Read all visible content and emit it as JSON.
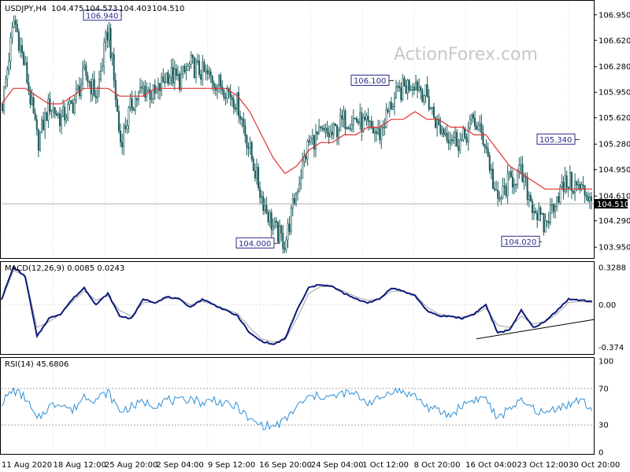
{
  "header": {
    "symbol": "USDJPY,H4",
    "open": "104.475",
    "high": "104.573",
    "low": "104.403",
    "close": "104.510"
  },
  "watermark": "ActionForex.com",
  "colors": {
    "price_bars": "#1f5f5f",
    "moving_average": "#e03030",
    "macd": "#0a1a7a",
    "macd_signal": "#a0a0a0",
    "rsi": "#2e8fd6",
    "trendline": "#000000",
    "grid": "#c0c0c0"
  },
  "chart_data": [
    {
      "type": "line",
      "name": "price",
      "ylim": [
        103.83,
        107.1
      ],
      "y_ticks": [
        "106.950",
        "106.620",
        "106.280",
        "105.950",
        "105.620",
        "105.280",
        "104.950",
        "104.610",
        "104.290",
        "103.950"
      ],
      "current_price_label": "104.510",
      "current_price": 104.51,
      "x_ticks": [
        "11 Aug 2020",
        "18 Aug 12:00",
        "25 Aug 20:00",
        "2 Sep 04:00",
        "9 Sep 12:00",
        "16 Sep 20:00",
        "24 Sep 04:00",
        "1 Oct 12:00",
        "8 Oct 20:00",
        "16 Oct 04:00",
        "23 Oct 12:00",
        "30 Oct 20:00"
      ],
      "annotations": [
        {
          "label": "106.940",
          "value": 106.94
        },
        {
          "label": "104.000",
          "value": 104.0
        },
        {
          "label": "106.100",
          "value": 106.1
        },
        {
          "label": "105.340",
          "value": 105.34
        },
        {
          "label": "104.020",
          "value": 104.02
        }
      ],
      "close_path": [
        105.8,
        106.9,
        106.2,
        105.3,
        105.8,
        105.6,
        105.8,
        106.2,
        105.9,
        106.8,
        105.3,
        105.8,
        106.0,
        105.9,
        106.2,
        106.1,
        106.3,
        106.2,
        106.1,
        106.0,
        105.8,
        105.2,
        104.6,
        104.2,
        104.0,
        104.7,
        105.3,
        105.4,
        105.4,
        105.6,
        105.6,
        105.5,
        105.4,
        105.8,
        106.0,
        106.1,
        105.9,
        105.5,
        105.4,
        105.3,
        105.6,
        105.3,
        104.5,
        104.8,
        104.9,
        104.5,
        104.2,
        104.6,
        104.8,
        104.7,
        104.6
      ],
      "moving_average_path": [
        105.8,
        106.0,
        106.0,
        105.9,
        105.8,
        105.8,
        105.9,
        106.0,
        106.0,
        106.0,
        105.9,
        105.9,
        105.9,
        106.0,
        106.0,
        106.0,
        106.0,
        106.0,
        106.0,
        106.0,
        105.9,
        105.7,
        105.4,
        105.1,
        104.9,
        105.0,
        105.2,
        105.3,
        105.3,
        105.4,
        105.4,
        105.5,
        105.5,
        105.6,
        105.6,
        105.7,
        105.6,
        105.6,
        105.5,
        105.5,
        105.4,
        105.4,
        105.2,
        105.0,
        104.9,
        104.8,
        104.7,
        104.7,
        104.7,
        104.7,
        104.7
      ]
    },
    {
      "type": "line",
      "name": "MACD(12,26,9) 0.0085 0.0243",
      "ylim": [
        -0.42,
        0.35
      ],
      "y_ticks": [
        "0.3288",
        "0.00",
        "-0.374"
      ],
      "macd_path": [
        0.05,
        0.33,
        0.25,
        -0.28,
        -0.12,
        -0.08,
        0.05,
        0.15,
        0.0,
        0.1,
        -0.1,
        -0.12,
        0.05,
        0.02,
        0.07,
        0.05,
        -0.02,
        0.05,
        0.0,
        -0.05,
        -0.1,
        -0.25,
        -0.32,
        -0.35,
        -0.3,
        -0.05,
        0.15,
        0.18,
        0.16,
        0.1,
        0.05,
        0.02,
        0.05,
        0.15,
        0.12,
        0.08,
        -0.05,
        -0.1,
        -0.1,
        -0.12,
        -0.08,
        0.0,
        -0.25,
        -0.22,
        -0.05,
        -0.2,
        -0.15,
        -0.05,
        0.05,
        0.04,
        0.03
      ],
      "signal_path": [
        0.04,
        0.3,
        0.26,
        -0.2,
        -0.15,
        -0.08,
        0.03,
        0.12,
        0.04,
        0.08,
        -0.05,
        -0.1,
        0.02,
        0.02,
        0.06,
        0.05,
        0.0,
        0.03,
        0.0,
        -0.04,
        -0.08,
        -0.2,
        -0.3,
        -0.33,
        -0.31,
        -0.12,
        0.1,
        0.16,
        0.16,
        0.12,
        0.07,
        0.04,
        0.05,
        0.12,
        0.12,
        0.09,
        -0.02,
        -0.08,
        -0.1,
        -0.11,
        -0.09,
        -0.03,
        -0.18,
        -0.2,
        -0.1,
        -0.17,
        -0.15,
        -0.08,
        0.02,
        0.03,
        0.02
      ],
      "trendline": {
        "from": -0.3,
        "to": -0.13
      }
    },
    {
      "type": "line",
      "name": "RSI(14) 45.6806",
      "ylim": [
        0,
        100
      ],
      "y_ticks": [
        "100",
        "70",
        "30",
        "0"
      ],
      "levels": [
        70,
        30
      ],
      "rsi_path": [
        55,
        68,
        60,
        35,
        50,
        55,
        45,
        62,
        58,
        66,
        45,
        50,
        55,
        52,
        58,
        55,
        60,
        54,
        58,
        52,
        50,
        35,
        30,
        28,
        35,
        50,
        60,
        62,
        60,
        65,
        63,
        55,
        58,
        68,
        66,
        62,
        50,
        45,
        40,
        52,
        58,
        60,
        35,
        50,
        55,
        48,
        42,
        50,
        52,
        58,
        46
      ]
    }
  ]
}
